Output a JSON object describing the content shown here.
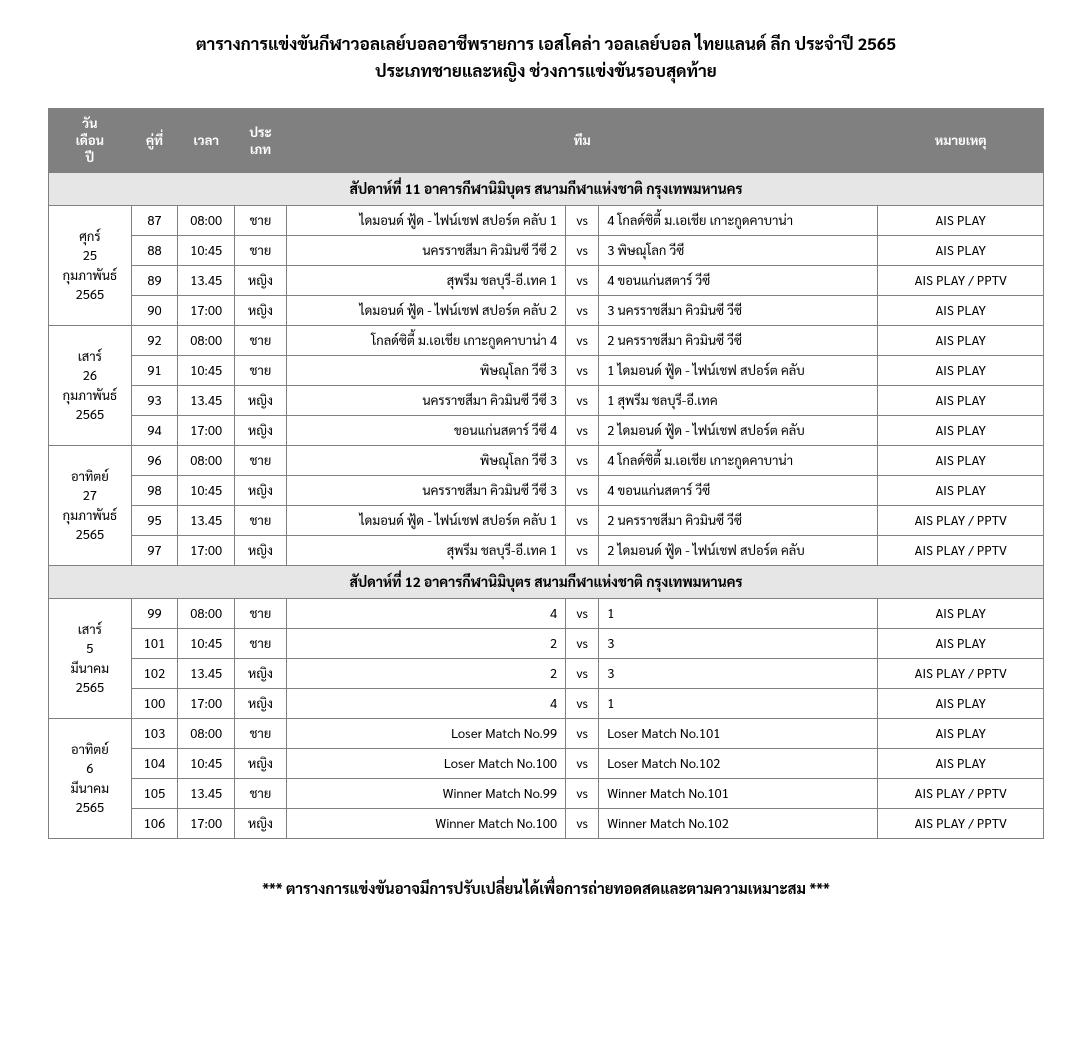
{
  "title_line1": "ตารางการแข่งขันกีฬาวอลเลย์บอลอาชีพรายการ เอสโคล่า วอลเลย์บอล ไทยแลนด์ ลีก ประจำปี 2565",
  "title_line2": "ประเภทชายและหญิง ช่วงการแข่งขันรอบสุดท้าย",
  "headers": {
    "date": "วัน\nเดือน\nปี",
    "match": "คู่ที่",
    "time": "เวลา",
    "category": "ประ\nเภท",
    "team": "ทีม",
    "note": "หมายเหตุ"
  },
  "vs": "vs",
  "weeks": [
    {
      "label": "สัปดาห์ที่ 11 อาคารกีฬานิมิบุตร สนามกีฬาแห่งชาติ กรุงเทพมหานคร",
      "days": [
        {
          "date": "ศุกร์\n25\nกุมภาพันธ์\n2565",
          "rows": [
            {
              "m": "87",
              "t": "08:00",
              "c": "ชาย",
              "a": "ไดมอนด์ ฟู้ด - ไฟน์เชฟ สปอร์ต คลับ 1",
              "b": "4 โกลด์ซิตี้ ม.เอเชีย เกาะกูดคาบาน่า",
              "n": "AIS PLAY"
            },
            {
              "m": "88",
              "t": "10:45",
              "c": "ชาย",
              "a": "นครราชสีมา คิวมินซี วีซี 2",
              "b": "3 พิษณุโลก วีซี",
              "n": "AIS PLAY"
            },
            {
              "m": "89",
              "t": "13.45",
              "c": "หญิง",
              "a": "สุพรีม ชลบุรี-อี.เทค 1",
              "b": "4 ขอนแก่นสตาร์ วีซี",
              "n": "AIS PLAY / PPTV"
            },
            {
              "m": "90",
              "t": "17:00",
              "c": "หญิง",
              "a": "ไดมอนด์ ฟู้ด - ไฟน์เชฟ สปอร์ต คลับ 2",
              "b": "3 นครราชสีมา คิวมินซี วีซี",
              "n": "AIS PLAY"
            }
          ]
        },
        {
          "date": "เสาร์\n26\nกุมภาพันธ์\n2565",
          "rows": [
            {
              "m": "92",
              "t": "08:00",
              "c": "ชาย",
              "a": "โกลด์ซิตี้ ม.เอเชีย เกาะกูดคาบาน่า 4",
              "b": "2 นครราชสีมา คิวมินซี วีซี",
              "n": "AIS PLAY"
            },
            {
              "m": "91",
              "t": "10:45",
              "c": "ชาย",
              "a": "พิษณุโลก วีซี 3",
              "b": "1 ไดมอนด์ ฟู้ด - ไฟน์เชฟ สปอร์ต คลับ",
              "n": "AIS PLAY"
            },
            {
              "m": "93",
              "t": "13.45",
              "c": "หญิง",
              "a": "นครราชสีมา คิวมินซี วีซี 3",
              "b": "1 สุพรีม ชลบุรี-อี.เทค",
              "n": "AIS PLAY"
            },
            {
              "m": "94",
              "t": "17:00",
              "c": "หญิง",
              "a": "ขอนแก่นสตาร์ วีซี 4",
              "b": "2 ไดมอนด์ ฟู้ด - ไฟน์เชฟ สปอร์ต คลับ",
              "n": "AIS PLAY"
            }
          ]
        },
        {
          "date": "อาทิตย์\n27\nกุมภาพันธ์\n2565",
          "rows": [
            {
              "m": "96",
              "t": "08:00",
              "c": "ชาย",
              "a": "พิษณุโลก วีซี 3",
              "b": "4 โกลด์ซิตี้ ม.เอเชีย เกาะกูดคาบาน่า",
              "n": "AIS PLAY"
            },
            {
              "m": "98",
              "t": "10:45",
              "c": "หญิง",
              "a": "นครราชสีมา คิวมินซี วีซี 3",
              "b": "4 ขอนแก่นสตาร์ วีซี",
              "n": "AIS PLAY"
            },
            {
              "m": "95",
              "t": "13.45",
              "c": "ชาย",
              "a": "ไดมอนด์ ฟู้ด - ไฟน์เชฟ สปอร์ต คลับ 1",
              "b": "2 นครราชสีมา คิวมินซี วีซี",
              "n": "AIS PLAY / PPTV"
            },
            {
              "m": "97",
              "t": "17:00",
              "c": "หญิง",
              "a": "สุพรีม ชลบุรี-อี.เทค 1",
              "b": "2 ไดมอนด์ ฟู้ด - ไฟน์เชฟ สปอร์ต คลับ",
              "n": "AIS PLAY / PPTV"
            }
          ]
        }
      ]
    },
    {
      "label": "สัปดาห์ที่ 12 อาคารกีฬานิมิบุตร สนามกีฬาแห่งชาติ กรุงเทพมหานคร",
      "days": [
        {
          "date": "เสาร์\n5\nมีนาคม\n2565",
          "rows": [
            {
              "m": "99",
              "t": "08:00",
              "c": "ชาย",
              "a": "4",
              "b": "1",
              "n": "AIS PLAY"
            },
            {
              "m": "101",
              "t": "10:45",
              "c": "ชาย",
              "a": "2",
              "b": "3",
              "n": "AIS PLAY"
            },
            {
              "m": "102",
              "t": "13.45",
              "c": "หญิง",
              "a": "2",
              "b": "3",
              "n": "AIS PLAY / PPTV"
            },
            {
              "m": "100",
              "t": "17:00",
              "c": "หญิง",
              "a": "4",
              "b": "1",
              "n": "AIS PLAY"
            }
          ]
        },
        {
          "date": "อาทิตย์\n6\nมีนาคม\n2565",
          "rows": [
            {
              "m": "103",
              "t": "08:00",
              "c": "ชาย",
              "a": "Loser Match No.99",
              "b": "Loser Match No.101",
              "n": "AIS PLAY"
            },
            {
              "m": "104",
              "t": "10:45",
              "c": "หญิง",
              "a": "Loser Match No.100",
              "b": "Loser Match No.102",
              "n": "AIS PLAY"
            },
            {
              "m": "105",
              "t": "13.45",
              "c": "ชาย",
              "a": "Winner Match No.99",
              "b": "Winner Match No.101",
              "n": "AIS PLAY / PPTV"
            },
            {
              "m": "106",
              "t": "17:00",
              "c": "หญิง",
              "a": "Winner Match No.100",
              "b": "Winner Match No.102",
              "n": "AIS PLAY / PPTV"
            }
          ]
        }
      ]
    }
  ],
  "footer": "*** ตารางการแข่งขันอาจมีการปรับเปลี่ยนได้เพื่อการถ่ายทอดสดและตามความเหมาะสม ***"
}
